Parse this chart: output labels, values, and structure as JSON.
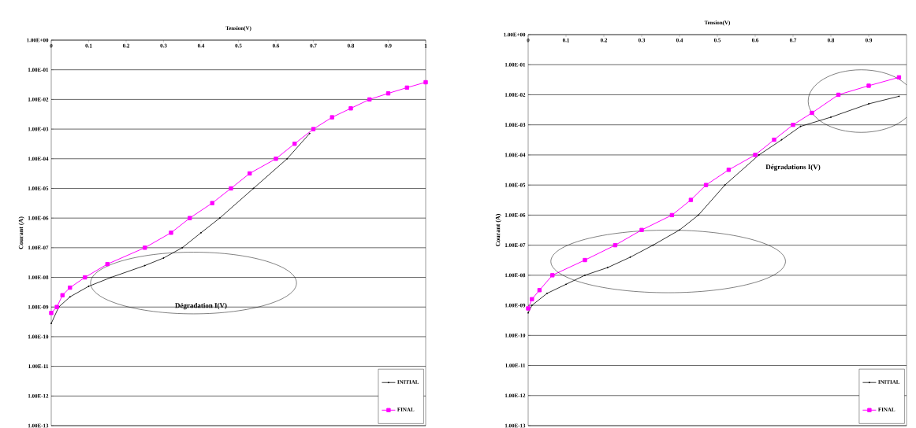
{
  "chart_data": [
    {
      "type": "line",
      "xlabel": "Tension(V)",
      "ylabel": "Courant (A)",
      "log": "y",
      "grid": "y",
      "legend": "bottom right",
      "xlim": [
        0,
        1
      ],
      "ylim": [
        1e-13,
        1
      ],
      "xticks": [
        0,
        0.1,
        0.2,
        0.3,
        0.4,
        0.5,
        0.6,
        0.7,
        0.8,
        0.9,
        1
      ],
      "yticks": [
        {
          "value": 1,
          "label": "1.00E+00"
        },
        {
          "value": 0.1,
          "label": "1.00E-01"
        },
        {
          "value": 0.01,
          "label": "1.00E-02"
        },
        {
          "value": 0.001,
          "label": "1.00E-03"
        },
        {
          "value": 0.0001,
          "label": "1.00E-04"
        },
        {
          "value": 1e-05,
          "label": "1.00E-05"
        },
        {
          "value": 1e-06,
          "label": "1.00E-06"
        },
        {
          "value": 1e-07,
          "label": "1.00E-07"
        },
        {
          "value": 1e-08,
          "label": "1.00E-08"
        },
        {
          "value": 1e-09,
          "label": "1.00E-09"
        },
        {
          "value": 1e-10,
          "label": "1.00E-10"
        },
        {
          "value": 1e-11,
          "label": "1.00E-11"
        },
        {
          "value": 1e-12,
          "label": "1.00E-12"
        },
        {
          "value": 1e-13,
          "label": "1.00E-13"
        }
      ],
      "annotations": [
        "Dégradation I(V)"
      ],
      "series": [
        {
          "name": "INITIAL",
          "color": "#000000",
          "marker": "circle",
          "x": [
            0,
            0.02,
            0.05,
            0.1,
            0.16,
            0.25,
            0.3,
            0.35,
            0.4,
            0.45,
            0.54,
            0.63,
            0.69
          ],
          "values": [
            2.8e-10,
            1e-09,
            2.2e-09,
            5e-09,
            1e-08,
            2.5e-08,
            4.5e-08,
            1e-07,
            3.2e-07,
            1e-06,
            1e-05,
            0.0001,
            0.00071
          ]
        },
        {
          "name": "FINAL",
          "color": "#ff00ff",
          "marker": "square",
          "x": [
            0,
            0.015,
            0.03,
            0.05,
            0.09,
            0.15,
            0.25,
            0.32,
            0.37,
            0.43,
            0.48,
            0.53,
            0.6,
            0.65,
            0.7,
            0.75,
            0.8,
            0.85,
            0.9,
            0.95,
            1
          ],
          "values": [
            6.3e-10,
            1e-09,
            2.5e-09,
            4.5e-09,
            1e-08,
            2.8e-08,
            1e-07,
            3.2e-07,
            1e-06,
            3.2e-06,
            1e-05,
            3.2e-05,
            0.0001,
            0.00032,
            0.001,
            0.0025,
            0.005,
            0.01,
            0.016,
            0.025,
            0.038
          ]
        }
      ]
    },
    {
      "type": "line",
      "xlabel": "Tension(V)",
      "ylabel": "Courant (A)",
      "log": "y",
      "grid": "y",
      "legend": "bottom right",
      "xlim": [
        0,
        1
      ],
      "ylim": [
        1e-13,
        1
      ],
      "xticks": [
        0,
        0.1,
        0.2,
        0.3,
        0.4,
        0.5,
        0.6,
        0.7,
        0.8,
        0.9
      ],
      "yticks": [
        {
          "value": 1,
          "label": "1.00E+00"
        },
        {
          "value": 0.1,
          "label": "1.00E-01"
        },
        {
          "value": 0.01,
          "label": "1.00E-02"
        },
        {
          "value": 0.001,
          "label": "1.00E-03"
        },
        {
          "value": 0.0001,
          "label": "1.00E-04"
        },
        {
          "value": 1e-05,
          "label": "1.00E-05"
        },
        {
          "value": 1e-06,
          "label": "1.00E-06"
        },
        {
          "value": 1e-07,
          "label": "1.00E-07"
        },
        {
          "value": 1e-08,
          "label": "1.00E-08"
        },
        {
          "value": 1e-09,
          "label": "1.00E-09"
        },
        {
          "value": 1e-10,
          "label": "1.00E-10"
        },
        {
          "value": 1e-11,
          "label": "1.00E-11"
        },
        {
          "value": 1e-12,
          "label": "1.00E-12"
        },
        {
          "value": 1e-13,
          "label": "1.00E-13"
        }
      ],
      "annotations": [
        "Dégradations I(V)"
      ],
      "series": [
        {
          "name": "INITIAL",
          "color": "#000000",
          "marker": "circle",
          "x": [
            0,
            0.01,
            0.05,
            0.1,
            0.15,
            0.21,
            0.27,
            0.33,
            0.4,
            0.45,
            0.52,
            0.61,
            0.67,
            0.72,
            0.8,
            0.9,
            0.98
          ],
          "values": [
            5.6e-10,
            1e-09,
            2.5e-09,
            5e-09,
            1e-08,
            1.8e-08,
            4e-08,
            1e-07,
            3.2e-07,
            1e-06,
            1e-05,
            0.0001,
            0.00032,
            0.00089,
            0.0018,
            0.005,
            0.0089
          ]
        },
        {
          "name": "FINAL",
          "color": "#ff00ff",
          "marker": "square",
          "x": [
            0,
            0.01,
            0.03,
            0.064,
            0.15,
            0.23,
            0.3,
            0.38,
            0.43,
            0.47,
            0.53,
            0.6,
            0.65,
            0.7,
            0.75,
            0.82,
            0.9,
            0.98
          ],
          "values": [
            7.9e-10,
            1.6e-09,
            3.2e-09,
            1e-08,
            3.2e-08,
            1e-07,
            3.2e-07,
            1e-06,
            3.2e-06,
            1e-05,
            3.2e-05,
            0.0001,
            0.00032,
            0.001,
            0.0025,
            0.01,
            0.02,
            0.038
          ]
        }
      ]
    }
  ]
}
